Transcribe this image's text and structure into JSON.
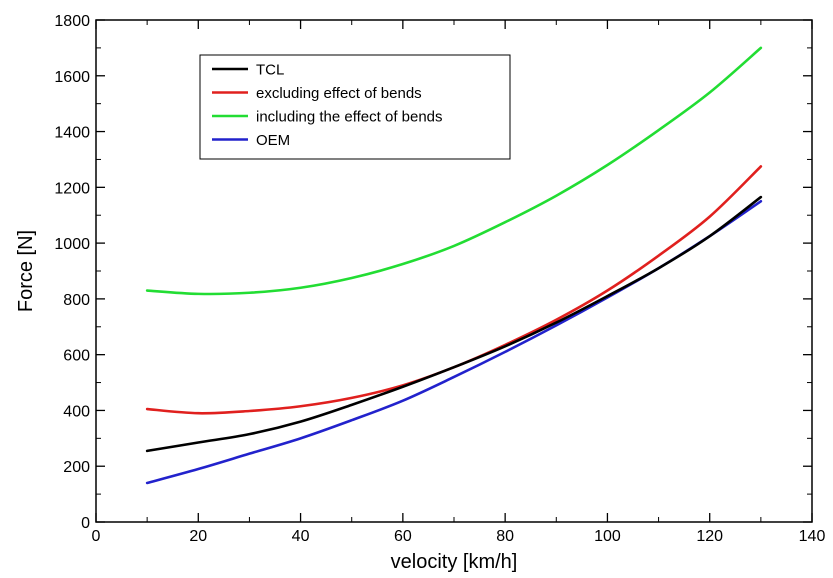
{
  "chart_data": {
    "type": "line",
    "xlabel": "velocity [km/h]",
    "ylabel": "Force [N]",
    "xlim": [
      0,
      140
    ],
    "ylim": [
      0,
      1800
    ],
    "xticks": [
      0,
      20,
      40,
      60,
      80,
      100,
      120,
      140
    ],
    "yticks": [
      0,
      200,
      400,
      600,
      800,
      1000,
      1200,
      1400,
      1600,
      1800
    ],
    "grid": false,
    "legend_position": "top-left",
    "series": [
      {
        "name": "TCL",
        "color": "#000000",
        "x": [
          10,
          20,
          30,
          40,
          50,
          60,
          70,
          80,
          90,
          100,
          110,
          120,
          130
        ],
        "y": [
          255,
          285,
          315,
          360,
          420,
          485,
          555,
          630,
          715,
          810,
          910,
          1025,
          1165
        ]
      },
      {
        "name": "excluding effect of bends",
        "color": "#e0201e",
        "x": [
          10,
          20,
          30,
          40,
          50,
          60,
          70,
          80,
          90,
          100,
          110,
          120,
          130
        ],
        "y": [
          405,
          390,
          398,
          415,
          445,
          490,
          555,
          635,
          725,
          830,
          955,
          1095,
          1275
        ]
      },
      {
        "name": "including the effect of bends",
        "color": "#22dd33",
        "x": [
          10,
          20,
          30,
          40,
          50,
          60,
          70,
          80,
          90,
          100,
          110,
          120,
          130
        ],
        "y": [
          830,
          818,
          822,
          840,
          875,
          925,
          990,
          1075,
          1170,
          1280,
          1405,
          1540,
          1700
        ]
      },
      {
        "name": "OEM",
        "color": "#2222cc",
        "x": [
          10,
          20,
          30,
          40,
          50,
          60,
          70,
          80,
          90,
          100,
          110,
          120,
          130
        ],
        "y": [
          140,
          190,
          245,
          300,
          365,
          435,
          520,
          610,
          705,
          805,
          910,
          1025,
          1150
        ]
      }
    ]
  }
}
